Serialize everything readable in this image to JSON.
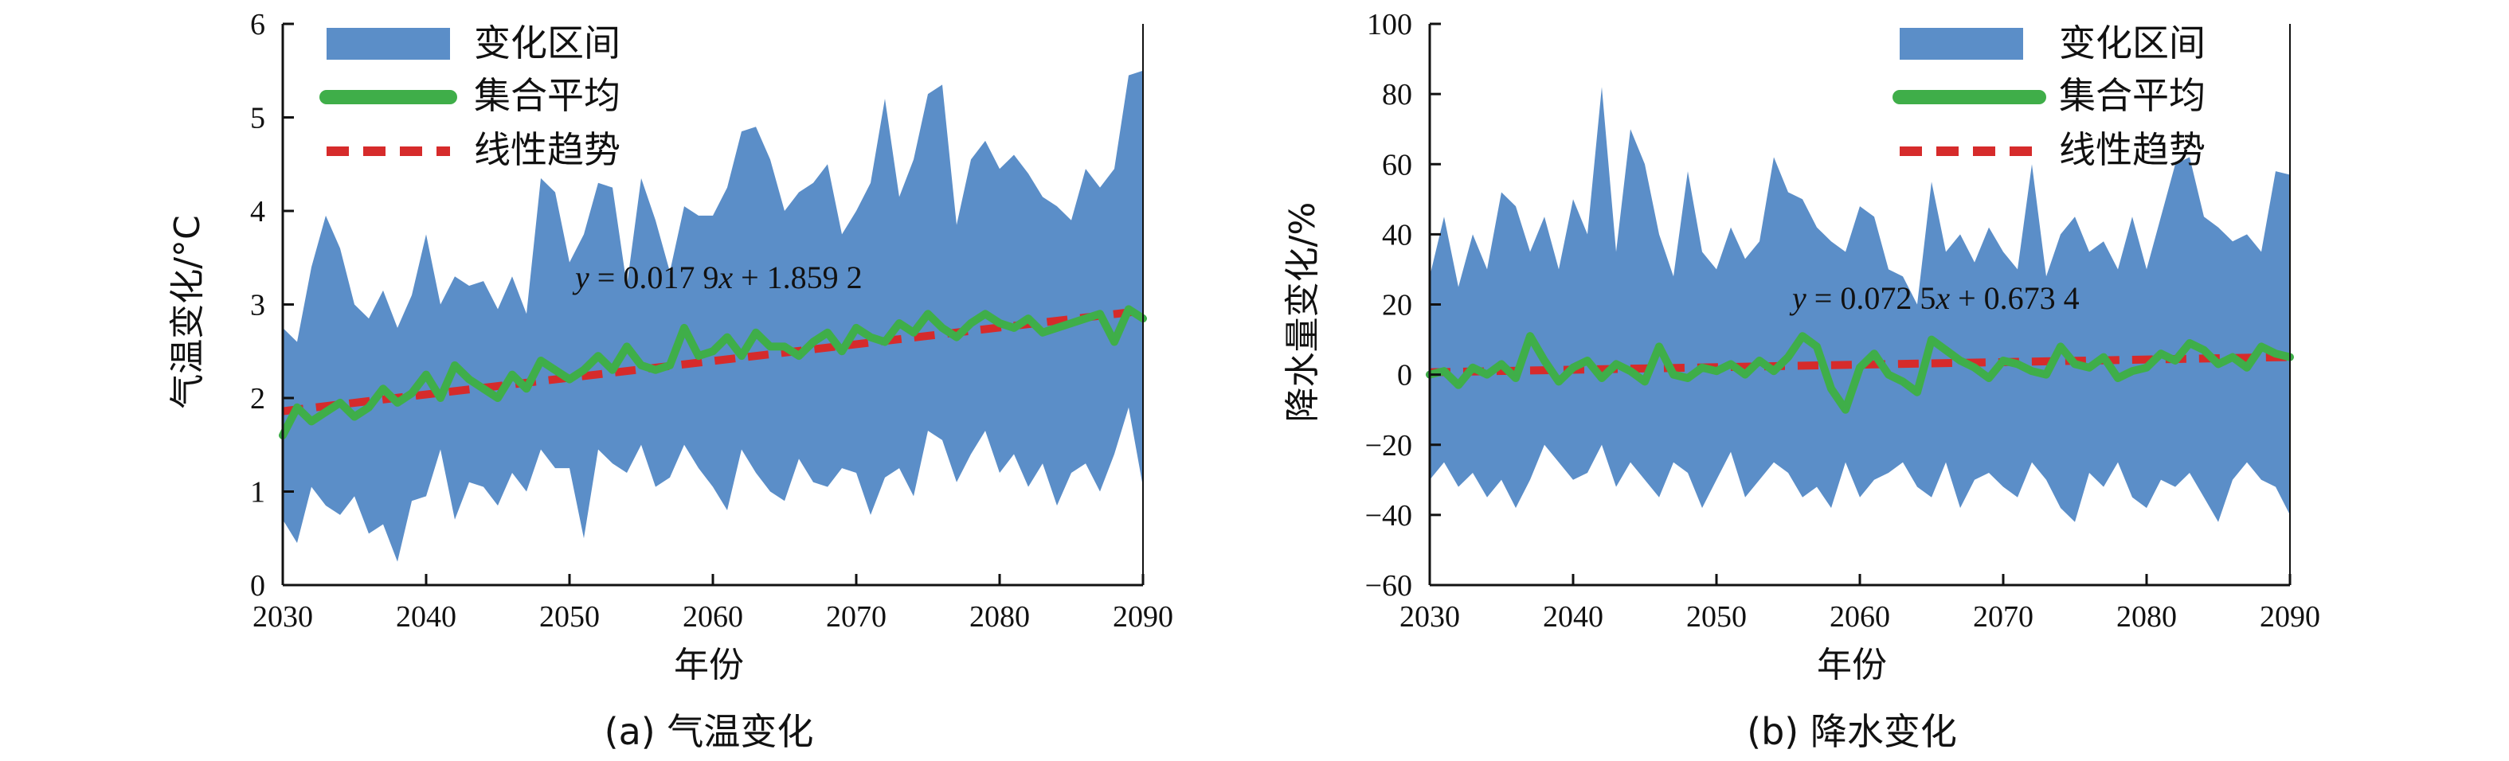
{
  "chart_data": [
    {
      "type": "area",
      "caption": "(a) 气温变化",
      "xlabel": "年份",
      "ylabel": "气温变化/°C",
      "xlim": [
        2030,
        2090
      ],
      "ylim": [
        0,
        6
      ],
      "xticks": [
        "2030",
        "2040",
        "2050",
        "2060",
        "2070",
        "2080",
        "2090"
      ],
      "yticks": [
        "0",
        "1",
        "2",
        "3",
        "4",
        "5",
        "6"
      ],
      "legend": [
        "变化区间",
        "集合平均",
        "线性趋势"
      ],
      "legend_position": "top-left",
      "equation": {
        "y": "y",
        "eq": " = 0.017 9",
        "x": "x",
        "rest": " + 1.859 2"
      },
      "trend": {
        "slope": 0.0179,
        "intercept": 1.8592
      },
      "colors": {
        "band": "#5b8ec8",
        "mean": "#3fae49",
        "trend": "#d62b2b"
      },
      "x": [
        2030,
        2031,
        2032,
        2033,
        2034,
        2035,
        2036,
        2037,
        2038,
        2039,
        2040,
        2041,
        2042,
        2043,
        2044,
        2045,
        2046,
        2047,
        2048,
        2049,
        2050,
        2051,
        2052,
        2053,
        2054,
        2055,
        2056,
        2057,
        2058,
        2059,
        2060,
        2061,
        2062,
        2063,
        2064,
        2065,
        2066,
        2067,
        2068,
        2069,
        2070,
        2071,
        2072,
        2073,
        2074,
        2075,
        2076,
        2077,
        2078,
        2079,
        2080,
        2081,
        2082,
        2083,
        2084,
        2085,
        2086,
        2087,
        2088,
        2089,
        2090
      ],
      "upper": [
        2.75,
        2.6,
        3.4,
        3.95,
        3.6,
        3.0,
        2.85,
        3.15,
        2.75,
        3.1,
        3.75,
        3.0,
        3.3,
        3.2,
        3.25,
        2.95,
        3.3,
        2.9,
        4.35,
        4.2,
        3.45,
        3.75,
        4.3,
        4.25,
        3.2,
        4.35,
        3.9,
        3.35,
        4.05,
        3.95,
        3.95,
        4.25,
        4.85,
        4.9,
        4.55,
        4.0,
        4.2,
        4.3,
        4.5,
        3.75,
        4.0,
        4.3,
        5.2,
        4.15,
        4.55,
        5.25,
        5.35,
        3.85,
        4.55,
        4.75,
        4.45,
        4.6,
        4.4,
        4.15,
        4.05,
        3.9,
        4.45,
        4.25,
        4.45,
        5.45,
        5.5
      ],
      "lower": [
        0.7,
        0.45,
        1.05,
        0.85,
        0.75,
        0.95,
        0.55,
        0.65,
        0.25,
        0.9,
        0.95,
        1.45,
        0.7,
        1.1,
        1.05,
        0.85,
        1.2,
        1.0,
        1.45,
        1.25,
        1.25,
        0.5,
        1.45,
        1.3,
        1.2,
        1.5,
        1.05,
        1.15,
        1.5,
        1.25,
        1.05,
        0.8,
        1.45,
        1.2,
        1.0,
        0.9,
        1.35,
        1.1,
        1.05,
        1.25,
        1.2,
        0.75,
        1.15,
        1.25,
        0.95,
        1.65,
        1.55,
        1.1,
        1.4,
        1.65,
        1.2,
        1.4,
        1.05,
        1.3,
        0.85,
        1.2,
        1.3,
        1.0,
        1.4,
        1.9,
        1.05
      ],
      "mean": [
        1.6,
        1.9,
        1.75,
        1.85,
        1.95,
        1.8,
        1.9,
        2.1,
        1.95,
        2.05,
        2.25,
        2.0,
        2.35,
        2.2,
        2.1,
        2.0,
        2.25,
        2.1,
        2.4,
        2.3,
        2.2,
        2.3,
        2.45,
        2.3,
        2.55,
        2.35,
        2.3,
        2.35,
        2.75,
        2.45,
        2.5,
        2.65,
        2.45,
        2.7,
        2.55,
        2.55,
        2.45,
        2.6,
        2.7,
        2.5,
        2.75,
        2.65,
        2.6,
        2.8,
        2.7,
        2.9,
        2.75,
        2.65,
        2.8,
        2.9,
        2.8,
        2.75,
        2.85,
        2.7,
        2.75,
        2.8,
        2.85,
        2.9,
        2.6,
        2.95,
        2.85
      ]
    },
    {
      "type": "area",
      "caption": "(b) 降水变化",
      "xlabel": "年份",
      "ylabel": "降水量变化/%",
      "xlim": [
        2030,
        2090
      ],
      "ylim": [
        -60,
        100
      ],
      "xticks": [
        "2030",
        "2040",
        "2050",
        "2060",
        "2070",
        "2080",
        "2090"
      ],
      "yticks": [
        "−60",
        "−40",
        "−20",
        "0",
        "20",
        "40",
        "60",
        "80",
        "100"
      ],
      "legend": [
        "变化区间",
        "集合平均",
        "线性趋势"
      ],
      "legend_position": "top-right",
      "equation": {
        "y": "y",
        "eq": " = 0.072 5",
        "x": "x",
        "rest": " + 0.673 4"
      },
      "trend": {
        "slope": 0.0725,
        "intercept": 0.6734
      },
      "colors": {
        "band": "#5b8ec8",
        "mean": "#3fae49",
        "trend": "#d62b2b"
      },
      "x": [
        2030,
        2031,
        2032,
        2033,
        2034,
        2035,
        2036,
        2037,
        2038,
        2039,
        2040,
        2041,
        2042,
        2043,
        2044,
        2045,
        2046,
        2047,
        2048,
        2049,
        2050,
        2051,
        2052,
        2053,
        2054,
        2055,
        2056,
        2057,
        2058,
        2059,
        2060,
        2061,
        2062,
        2063,
        2064,
        2065,
        2066,
        2067,
        2068,
        2069,
        2070,
        2071,
        2072,
        2073,
        2074,
        2075,
        2076,
        2077,
        2078,
        2079,
        2080,
        2081,
        2082,
        2083,
        2084,
        2085,
        2086,
        2087,
        2088,
        2089,
        2090
      ],
      "upper": [
        28,
        45,
        25,
        40,
        30,
        52,
        48,
        35,
        45,
        30,
        50,
        40,
        82,
        35,
        70,
        60,
        40,
        28,
        58,
        35,
        30,
        42,
        33,
        38,
        62,
        52,
        50,
        42,
        38,
        35,
        48,
        45,
        30,
        28,
        20,
        55,
        35,
        40,
        32,
        42,
        35,
        30,
        60,
        28,
        40,
        45,
        35,
        38,
        30,
        45,
        30,
        45,
        60,
        62,
        45,
        42,
        38,
        40,
        35,
        58,
        57
      ],
      "lower": [
        -30,
        -25,
        -32,
        -28,
        -35,
        -30,
        -38,
        -30,
        -20,
        -25,
        -30,
        -28,
        -20,
        -32,
        -25,
        -30,
        -35,
        -25,
        -28,
        -38,
        -30,
        -22,
        -35,
        -30,
        -25,
        -28,
        -35,
        -32,
        -38,
        -25,
        -35,
        -30,
        -28,
        -25,
        -32,
        -35,
        -25,
        -38,
        -30,
        -28,
        -32,
        -35,
        -25,
        -30,
        -38,
        -42,
        -28,
        -32,
        -25,
        -35,
        -38,
        -30,
        -32,
        -28,
        -35,
        -42,
        -30,
        -25,
        -30,
        -32,
        -40
      ],
      "mean": [
        0,
        1,
        -3,
        2,
        0,
        3,
        -1,
        11,
        4,
        -2,
        2,
        4,
        -1,
        3,
        1,
        -2,
        8,
        0,
        -1,
        2,
        1,
        3,
        0,
        4,
        1,
        5,
        11,
        8,
        -4,
        -10,
        2,
        6,
        0,
        -2,
        -5,
        10,
        7,
        4,
        2,
        -1,
        4,
        3,
        1,
        0,
        8,
        3,
        2,
        5,
        -1,
        1,
        2,
        6,
        4,
        9,
        7,
        3,
        5,
        2,
        8,
        6,
        5
      ]
    }
  ]
}
